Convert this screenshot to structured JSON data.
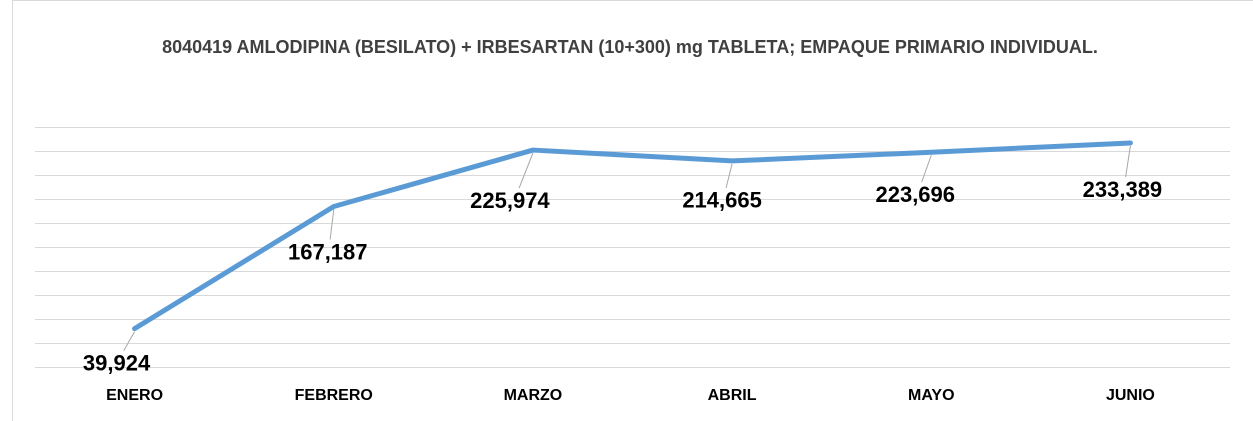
{
  "chart_data": {
    "type": "line",
    "title": "8040419 AMLODIPINA (BESILATO) + IRBESARTAN (10+300) mg TABLETA; EMPAQUE PRIMARIO INDIVIDUAL.",
    "categories": [
      "ENERO",
      "FEBRERO",
      "MARZO",
      "ABRIL",
      "MAYO",
      "JUNIO"
    ],
    "series": [
      {
        "color": "#5b9bd5",
        "values": [
          39924,
          167187,
          225974,
          214665,
          223696,
          233389
        ],
        "value_labels": [
          "39,924",
          "167,187",
          "225,974",
          "214,665",
          "223,696",
          "233,389"
        ]
      }
    ],
    "ylim": [
      0,
      250000
    ],
    "yticks": [
      0,
      25000,
      50000,
      75000,
      100000,
      125000,
      150000,
      175000,
      200000,
      225000,
      250000
    ],
    "grid": true
  }
}
